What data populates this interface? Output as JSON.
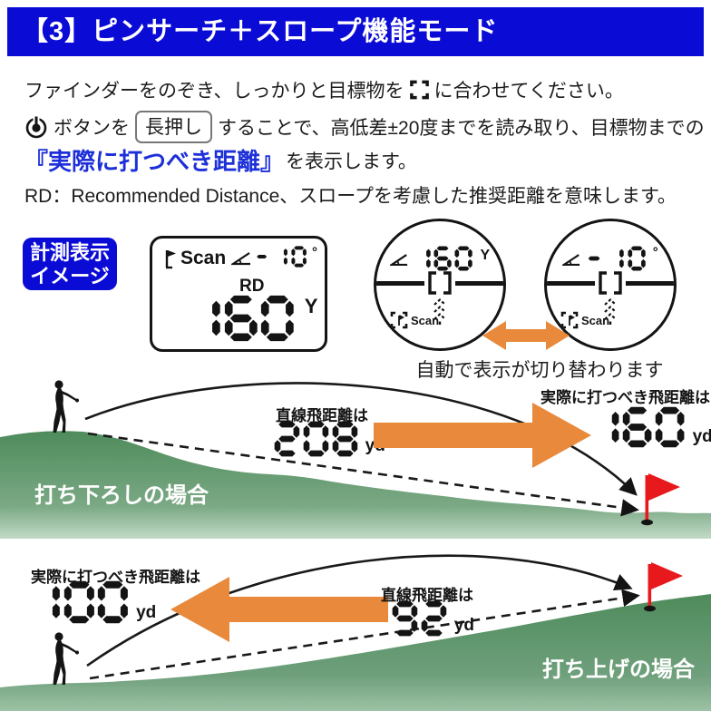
{
  "header": {
    "title": "【3】ピンサーチ＋スロープ機能モード"
  },
  "intro": {
    "line1_pre": "ファインダーをのぞき、しっかりと目標物を",
    "line1_post": "に合わせてください。",
    "line2_pre": "ボタンを",
    "line2_button": "長押し",
    "line2_post": "することで、高低差±20度までを読み取り、目標物までの",
    "line3_blue": "『実際に打つべき距離』",
    "line3_rest": "を表示します。",
    "line4": "RD：Recommended Distance、スロープを考慮した推奨距離を意味します。"
  },
  "badge": {
    "line1": "計測表示",
    "line2": "イメージ"
  },
  "lcd": {
    "scan": "Scan",
    "angle": "-10",
    "degree": "°",
    "rd": "RD",
    "distance": "160",
    "unit": "Y"
  },
  "viewfinders": {
    "left": {
      "value": "160",
      "unit": "Y",
      "scan": "Scan"
    },
    "right": {
      "angle": "-10",
      "degree": "°",
      "scan": "Scan"
    },
    "caption": "自動で表示が切り替わります"
  },
  "downhill": {
    "label": "打ち下ろしの場合",
    "line_label": "直線飛距離は",
    "line_value": "208",
    "line_unit": "yd",
    "actual_label": "実際に打つべき飛距離は",
    "actual_value": "160",
    "actual_unit": "yd"
  },
  "uphill": {
    "label": "打ち上げの場合",
    "actual_label": "実際に打つべき飛距離は",
    "actual_value": "100",
    "actual_unit": "yd",
    "line_label": "直線飛距離は",
    "line_value": "92",
    "line_unit": "yd"
  },
  "icons": {
    "power-icon": "power symbol with center dot",
    "target-bracket-icon": "[ ] aiming brackets",
    "angle-icon": "slope angle with arc",
    "flag-icon": "pin flag",
    "scan-target-icon": "flag inside corner brackets",
    "scan-chevrons-icon": "dashed upward chevrons",
    "swap-arrow-icon": "orange double-headed arrow",
    "flag-pin": "red pin flag on green",
    "golfer": "golfer silhouette"
  },
  "colors": {
    "header_blue": "#0b0bd6",
    "accent_blue": "#1c2fd8",
    "orange": "#e8893b",
    "green_dark": "#4e8b5b",
    "green_light": "#c2dac6",
    "flag_red": "#e8191c",
    "ink": "#141414"
  }
}
